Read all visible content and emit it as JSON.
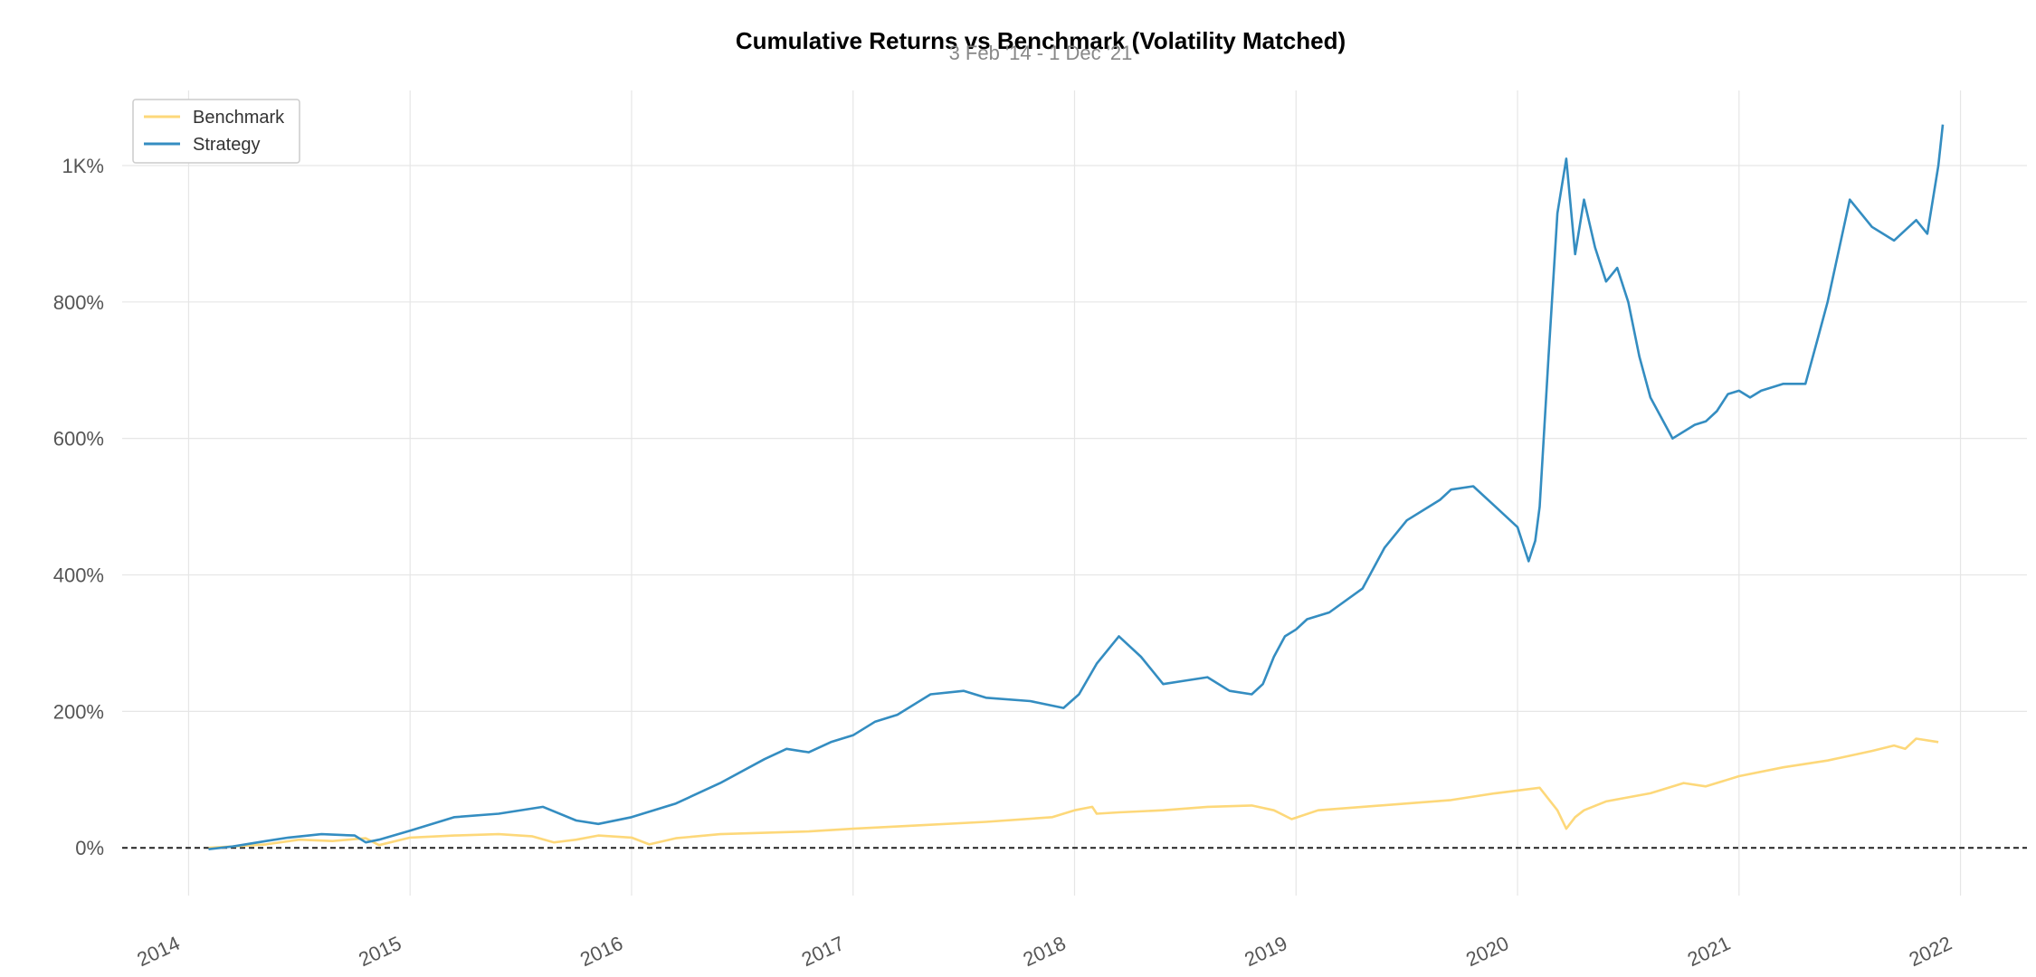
{
  "chart_data": {
    "type": "line",
    "title": "Cumulative Returns vs Benchmark (Volatility Matched)",
    "subtitle": "3 Feb '14 - 1 Dec '21",
    "xlabel": "",
    "ylabel": "",
    "ylim": [
      -70,
      1110
    ],
    "xlim": [
      2013.7,
      2022.3
    ],
    "grid": true,
    "legend_position": "top-left",
    "y_ticks": [
      {
        "value": 0,
        "label": "0%"
      },
      {
        "value": 200,
        "label": "200%"
      },
      {
        "value": 400,
        "label": "400%"
      },
      {
        "value": 600,
        "label": "600%"
      },
      {
        "value": 800,
        "label": "800%"
      },
      {
        "value": 1000,
        "label": "1K%"
      }
    ],
    "x_ticks": [
      {
        "value": 2014,
        "label": "2014"
      },
      {
        "value": 2015,
        "label": "2015"
      },
      {
        "value": 2016,
        "label": "2016"
      },
      {
        "value": 2017,
        "label": "2017"
      },
      {
        "value": 2018,
        "label": "2018"
      },
      {
        "value": 2019,
        "label": "2019"
      },
      {
        "value": 2020,
        "label": "2020"
      },
      {
        "value": 2021,
        "label": "2021"
      },
      {
        "value": 2022,
        "label": "2022"
      }
    ],
    "zero_line": 0,
    "series": [
      {
        "name": "Benchmark",
        "color": "#fdd87a",
        "x": [
          2014.09,
          2014.2,
          2014.35,
          2014.5,
          2014.65,
          2014.8,
          2014.86,
          2015.0,
          2015.2,
          2015.4,
          2015.55,
          2015.65,
          2015.75,
          2015.85,
          2016.0,
          2016.08,
          2016.2,
          2016.4,
          2016.6,
          2016.8,
          2017.0,
          2017.3,
          2017.6,
          2017.9,
          2018.0,
          2018.08,
          2018.1,
          2018.2,
          2018.4,
          2018.6,
          2018.8,
          2018.9,
          2018.98,
          2019.1,
          2019.3,
          2019.5,
          2019.7,
          2019.9,
          2020.1,
          2020.18,
          2020.22,
          2020.26,
          2020.3,
          2020.4,
          2020.6,
          2020.75,
          2020.85,
          2021.0,
          2021.2,
          2021.4,
          2021.6,
          2021.7,
          2021.75,
          2021.8,
          2021.9
        ],
        "values": [
          0,
          2,
          5,
          12,
          10,
          14,
          4,
          15,
          18,
          20,
          17,
          8,
          12,
          18,
          15,
          5,
          14,
          20,
          22,
          24,
          28,
          33,
          38,
          45,
          55,
          60,
          50,
          52,
          55,
          60,
          62,
          55,
          42,
          55,
          60,
          65,
          70,
          80,
          88,
          55,
          28,
          45,
          55,
          68,
          80,
          95,
          90,
          105,
          118,
          128,
          142,
          150,
          145,
          160,
          155
        ]
      },
      {
        "name": "Strategy",
        "color": "#348dc1",
        "x": [
          2014.09,
          2014.2,
          2014.35,
          2014.45,
          2014.6,
          2014.75,
          2014.8,
          2014.86,
          2015.0,
          2015.2,
          2015.4,
          2015.6,
          2015.75,
          2015.85,
          2016.0,
          2016.1,
          2016.2,
          2016.4,
          2016.6,
          2016.7,
          2016.8,
          2016.9,
          2017.0,
          2017.1,
          2017.2,
          2017.35,
          2017.5,
          2017.6,
          2017.8,
          2017.95,
          2018.02,
          2018.1,
          2018.2,
          2018.3,
          2018.4,
          2018.5,
          2018.6,
          2018.7,
          2018.8,
          2018.85,
          2018.9,
          2018.95,
          2019.0,
          2019.05,
          2019.15,
          2019.3,
          2019.4,
          2019.5,
          2019.6,
          2019.65,
          2019.7,
          2019.8,
          2019.9,
          2020.0,
          2020.05,
          2020.08,
          2020.1,
          2020.14,
          2020.18,
          2020.22,
          2020.26,
          2020.3,
          2020.35,
          2020.4,
          2020.45,
          2020.5,
          2020.55,
          2020.6,
          2020.7,
          2020.8,
          2020.85,
          2020.9,
          2020.95,
          2021.0,
          2021.05,
          2021.1,
          2021.2,
          2021.3,
          2021.35,
          2021.4,
          2021.5,
          2021.6,
          2021.7,
          2021.8,
          2021.85,
          2021.9,
          2021.92
        ],
        "values": [
          -2,
          2,
          10,
          15,
          20,
          18,
          8,
          12,
          25,
          45,
          50,
          60,
          40,
          35,
          45,
          55,
          65,
          95,
          130,
          145,
          140,
          155,
          165,
          185,
          195,
          225,
          230,
          220,
          215,
          205,
          225,
          270,
          310,
          280,
          240,
          245,
          250,
          230,
          225,
          240,
          280,
          310,
          320,
          335,
          345,
          380,
          440,
          480,
          500,
          510,
          525,
          530,
          500,
          470,
          420,
          450,
          500,
          720,
          930,
          1010,
          870,
          950,
          880,
          830,
          850,
          800,
          720,
          660,
          600,
          620,
          625,
          640,
          665,
          670,
          660,
          670,
          680,
          680,
          740,
          800,
          950,
          910,
          890,
          920,
          900,
          1000,
          1060
        ]
      }
    ]
  }
}
